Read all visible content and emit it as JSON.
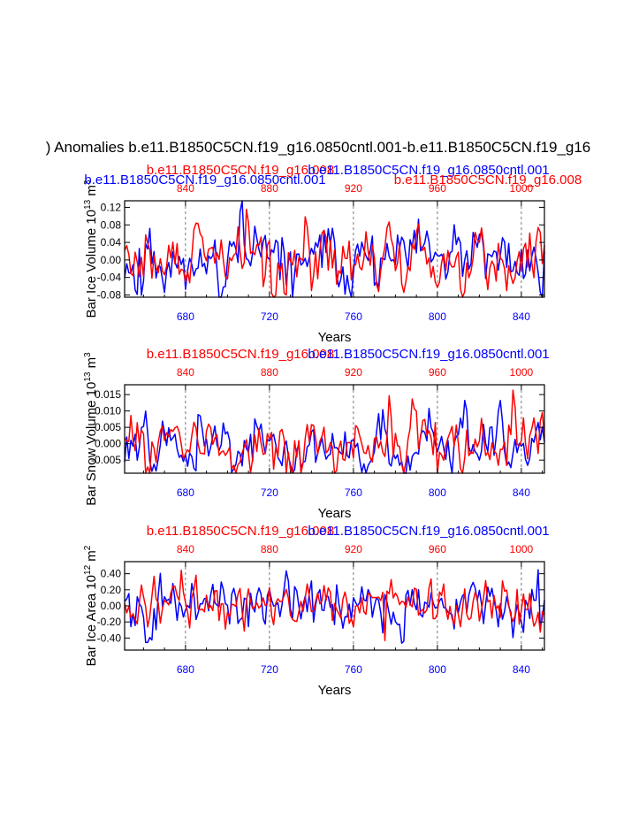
{
  "figure": {
    "title": ") Anomalies b.e11.B1850C5CN.f19_g16.0850cntl.001-b.e11.B1850C5CN.f19_g16",
    "colors": {
      "blue": "#0000ff",
      "red": "#ff0000",
      "black": "#000000",
      "grid": "#555555"
    }
  },
  "chart_data": [
    {
      "type": "line",
      "panel": "ice-volume",
      "ylabel_main": "Bar Ice Volume 10",
      "ylabel_exp": "13",
      "ylabel_unit": " m",
      "ylabel_unit_exp": "3",
      "xlabel": "Years",
      "header_left": "b.e11.B1850C5CN.f19_g16.0850cntl.001",
      "header_left_color": "blue",
      "header_mid": "b.e11.B1850C5CN.f19_g16.008",
      "header_mid_color": "red",
      "header_right_a": "b.e11.B1850C5CN.f19_g16.0850cntl.001",
      "header_right_a_color": "blue",
      "header_right_b": "b.e11.B1850C5CN.f19_g16.008",
      "header_right_b_color": "red",
      "ylim": [
        -0.085,
        0.135
      ],
      "yticks": [
        0.12,
        0.08,
        0.04,
        0.0,
        -0.04,
        -0.08
      ],
      "yticklabels": [
        "0.12",
        "0.08",
        "0.04",
        "0.00",
        "-0.04",
        "-0.08"
      ],
      "xlim_bottom": [
        651,
        851
      ],
      "xticks_bottom": [
        680,
        720,
        760,
        800,
        840
      ],
      "xticks_top": [
        840,
        880,
        920,
        960,
        1000
      ],
      "top_offset": 160,
      "grid_x": [
        680,
        720,
        760,
        800,
        840
      ],
      "amplitude": 0.04,
      "series": [
        {
          "name": "b.e11.B1850C5CN.f19_g16.0850cntl.001",
          "color": "blue",
          "seed": 11
        },
        {
          "name": "b.e11.B1850C5CN.f19_g16.008",
          "color": "red",
          "seed": 29
        }
      ]
    },
    {
      "type": "line",
      "panel": "snow-volume",
      "ylabel_main": "Bar Snow Volume 10",
      "ylabel_exp": "13",
      "ylabel_unit": " m",
      "ylabel_unit_exp": "3",
      "xlabel": "Years",
      "header_mid": "b.e11.B1850C5CN.f19_g16.008",
      "header_mid_color": "red",
      "header_right_a": "b.e11.B1850C5CN.f19_g16.0850cntl.001",
      "header_right_a_color": "blue",
      "ylim": [
        -0.009,
        0.018
      ],
      "yticks": [
        0.015,
        0.01,
        0.005,
        0.0,
        -0.005
      ],
      "yticklabels": [
        "0.015",
        "0.010",
        "0.005",
        "0.000",
        "-0.005"
      ],
      "xlim_bottom": [
        651,
        851
      ],
      "xticks_bottom": [
        680,
        720,
        760,
        800,
        840
      ],
      "xticks_top": [
        840,
        880,
        920,
        960,
        1000
      ],
      "top_offset": 160,
      "grid_x": [
        680,
        720,
        760,
        800,
        840
      ],
      "amplitude": 0.005,
      "series": [
        {
          "name": "b.e11.B1850C5CN.f19_g16.0850cntl.001",
          "color": "blue",
          "seed": 47
        },
        {
          "name": "b.e11.B1850C5CN.f19_g16.008",
          "color": "red",
          "seed": 83
        }
      ]
    },
    {
      "type": "line",
      "panel": "ice-area",
      "ylabel_main": "Bar Ice Area 10",
      "ylabel_exp": "12",
      "ylabel_unit": " m",
      "ylabel_unit_exp": "2",
      "xlabel": "Years",
      "header_mid": "b.e11.B1850C5CN.f19_g16.008",
      "header_mid_color": "red",
      "header_right_a": "b.e11.B1850C5CN.f19_g16.0850cntl.001",
      "header_right_a_color": "blue",
      "ylim": [
        -0.55,
        0.55
      ],
      "yticks": [
        0.4,
        0.2,
        0.0,
        -0.2,
        -0.4
      ],
      "yticklabels": [
        "0.40",
        "0.20",
        "0.00",
        "-0.20",
        "-0.40"
      ],
      "xlim_bottom": [
        651,
        851
      ],
      "xticks_bottom": [
        680,
        720,
        760,
        800,
        840
      ],
      "xticks_top": [
        840,
        880,
        920,
        960,
        1000
      ],
      "top_offset": 160,
      "grid_x": [
        680,
        720,
        760,
        800,
        840
      ],
      "amplitude": 0.18,
      "series": [
        {
          "name": "b.e11.B1850C5CN.f19_g16.0850cntl.001",
          "color": "blue",
          "seed": 101
        },
        {
          "name": "b.e11.B1850C5CN.f19_g16.008",
          "color": "red",
          "seed": 137
        }
      ]
    }
  ]
}
